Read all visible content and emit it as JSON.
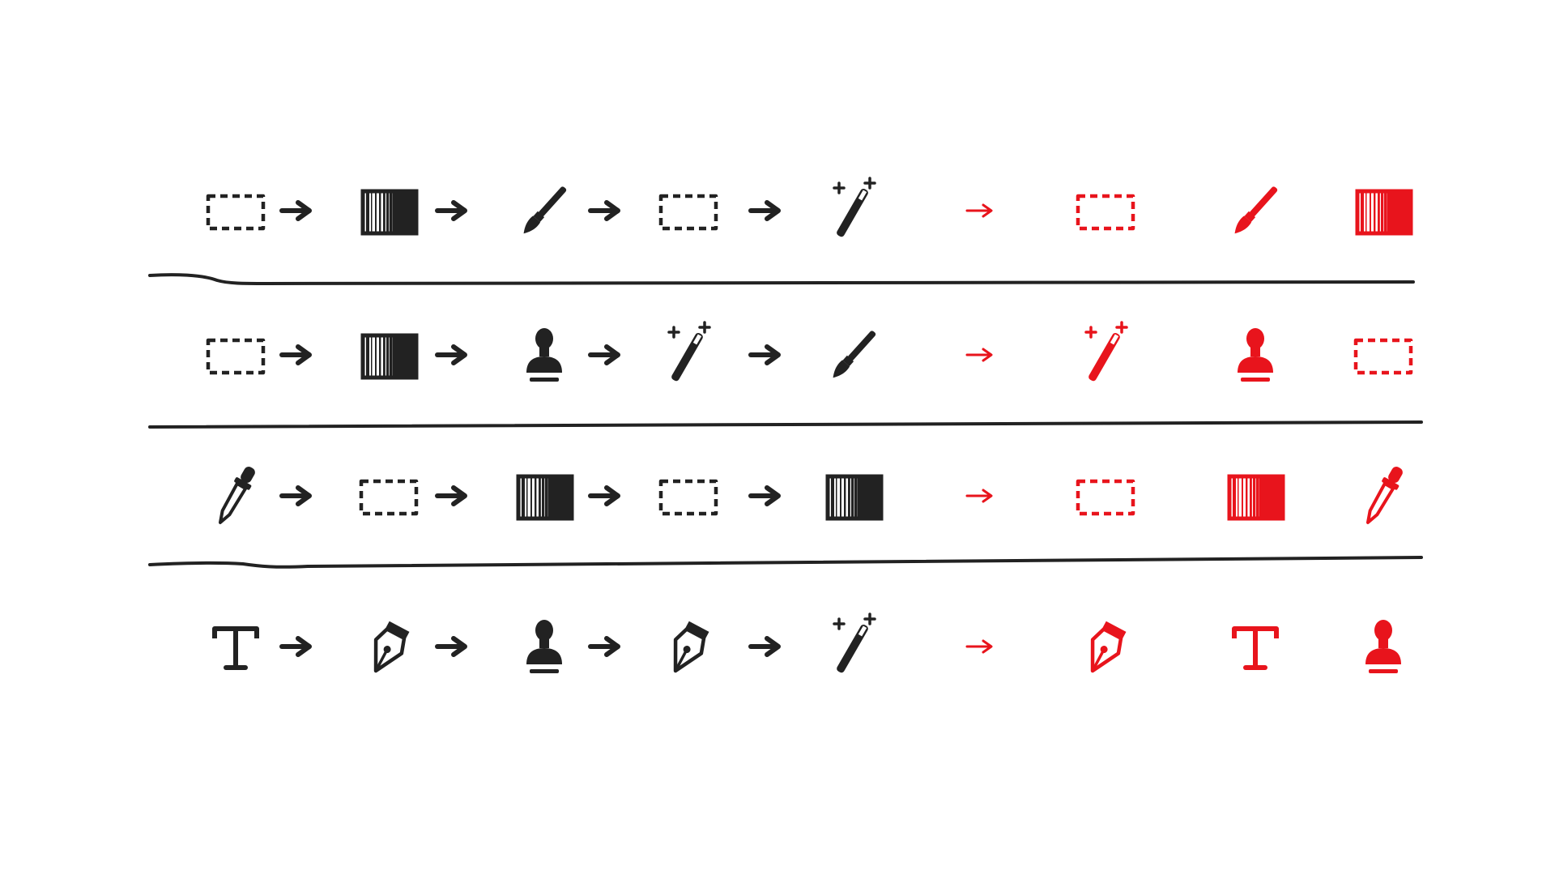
{
  "colors": {
    "ink": "#222222",
    "accent": "#e8141c",
    "background": "#ffffff"
  },
  "rows": [
    {
      "sequence": [
        "marquee-selection-icon",
        "gradient-icon",
        "brush-icon",
        "marquee-selection-icon",
        "magic-wand-icon"
      ],
      "result": [
        "marquee-selection-icon",
        "brush-icon",
        "gradient-icon"
      ]
    },
    {
      "sequence": [
        "marquee-selection-icon",
        "gradient-icon",
        "clone-stamp-icon",
        "magic-wand-icon",
        "brush-icon"
      ],
      "result": [
        "magic-wand-icon",
        "clone-stamp-icon",
        "marquee-selection-icon"
      ]
    },
    {
      "sequence": [
        "eyedropper-icon",
        "marquee-selection-icon",
        "gradient-icon",
        "marquee-selection-icon",
        "gradient-icon"
      ],
      "result": [
        "marquee-selection-icon",
        "gradient-icon",
        "eyedropper-icon"
      ]
    },
    {
      "sequence": [
        "type-tool-icon",
        "pen-tool-icon",
        "clone-stamp-icon",
        "pen-tool-icon",
        "magic-wand-icon"
      ],
      "result": [
        "pen-tool-icon",
        "type-tool-icon",
        "clone-stamp-icon"
      ]
    }
  ]
}
